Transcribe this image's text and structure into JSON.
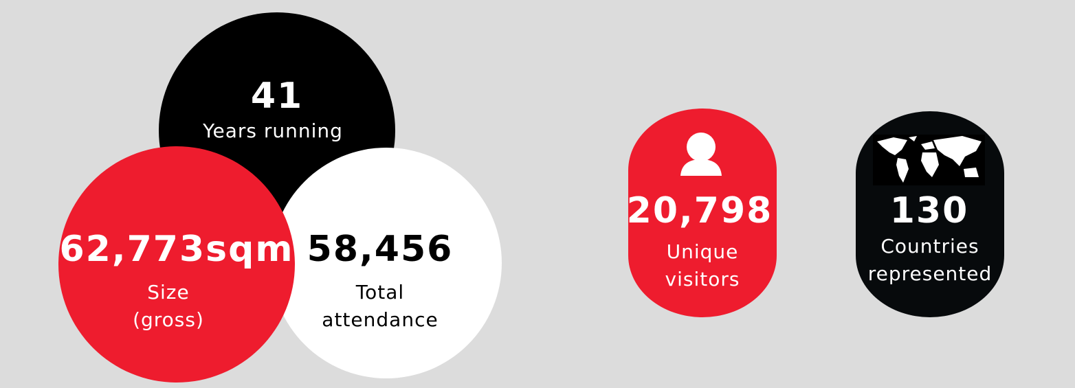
{
  "stats": [
    {
      "value": "41",
      "label": [
        "Years running"
      ]
    },
    {
      "value": "62,773sqm",
      "label": [
        "Size",
        "(gross)"
      ]
    },
    {
      "value": "58,456",
      "label": [
        "Total",
        "attendance"
      ]
    },
    {
      "value": "20,798",
      "label": [
        "Unique",
        "visitors"
      ]
    },
    {
      "value": "130",
      "label": [
        "Countries",
        "represented"
      ]
    }
  ]
}
